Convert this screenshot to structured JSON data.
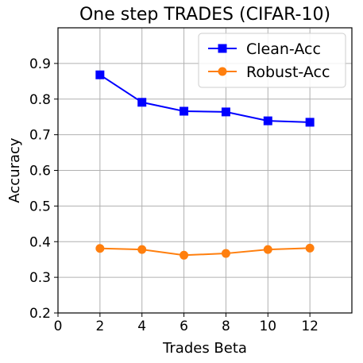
{
  "chart_data": {
    "type": "line",
    "title": "One step TRADES (CIFAR-10)",
    "xlabel": "Trades Beta",
    "ylabel": "Accuracy",
    "xlim": [
      0,
      14
    ],
    "ylim": [
      0.2,
      1.0
    ],
    "x_ticks": [
      0,
      2,
      4,
      6,
      8,
      10,
      12
    ],
    "y_ticks": [
      0.2,
      0.3,
      0.4,
      0.5,
      0.6,
      0.7,
      0.8,
      0.9
    ],
    "grid": true,
    "legend_position": "top-right",
    "x": [
      2,
      4,
      6,
      8,
      10,
      12
    ],
    "series": [
      {
        "name": "Clean-Acc",
        "color": "#0000ff",
        "marker": "square",
        "values": [
          0.868,
          0.791,
          0.766,
          0.764,
          0.739,
          0.735
        ]
      },
      {
        "name": "Robust-Acc",
        "color": "#ff7f0e",
        "marker": "circle",
        "values": [
          0.381,
          0.378,
          0.362,
          0.367,
          0.378,
          0.382
        ]
      }
    ]
  }
}
